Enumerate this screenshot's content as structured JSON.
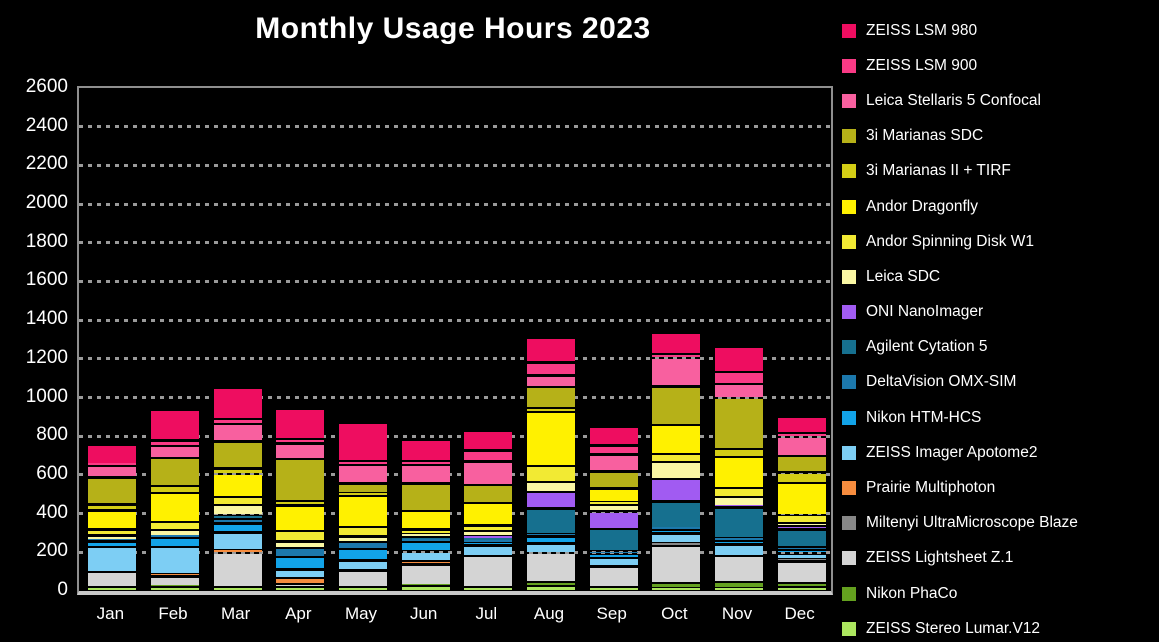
{
  "title": "Monthly Usage Hours 2023",
  "colors": {
    "background": "#000000",
    "text": "#FFFFFF",
    "gridline": "#9A9A9A",
    "plot_border": "#8F8F8F",
    "axis_line": "#C9C9C9"
  },
  "chart_data": {
    "type": "bar",
    "stacked": true,
    "title": "Monthly Usage Hours 2023",
    "xlabel": "",
    "ylabel": "",
    "ylim": [
      0,
      2600
    ],
    "ytick_step": 200,
    "grid": "dotted-horizontal",
    "legend_position": "right",
    "categories": [
      "Jan",
      "Feb",
      "Mar",
      "Apr",
      "May",
      "Jun",
      "Jul",
      "Aug",
      "Sep",
      "Oct",
      "Nov",
      "Dec"
    ],
    "series": [
      {
        "name": "ZEISS LSM 980",
        "color": "#EE0D60",
        "values": [
          100,
          160,
          160,
          155,
          200,
          115,
          100,
          130,
          95,
          110,
          132,
          85
        ]
      },
      {
        "name": "ZEISS LSM 900",
        "color": "#F93A85",
        "values": [
          8,
          28,
          25,
          22,
          20,
          18,
          58,
          68,
          48,
          20,
          63,
          20
        ]
      },
      {
        "name": "Leica Stellaris 5 Confocal",
        "color": "#F8609F",
        "values": [
          60,
          63,
          90,
          82,
          95,
          95,
          120,
          58,
          88,
          145,
          70,
          100
        ]
      },
      {
        "name": "3i Marianas SDC",
        "color": "#B6B118",
        "values": [
          140,
          145,
          140,
          215,
          48,
          142,
          95,
          110,
          88,
          200,
          265,
          85
        ]
      },
      {
        "name": "3i Marianas II + TIRF",
        "color": "#D3CD15",
        "values": [
          30,
          36,
          28,
          25,
          15,
          0,
          0,
          20,
          0,
          0,
          42,
          55
        ]
      },
      {
        "name": "Andor Dragonfly",
        "color": "#FFF100",
        "values": [
          100,
          150,
          120,
          130,
          160,
          95,
          115,
          280,
          70,
          150,
          160,
          165
        ]
      },
      {
        "name": "Andor Spinning Disk W1",
        "color": "#F2EA33",
        "values": [
          30,
          40,
          40,
          55,
          50,
          25,
          30,
          80,
          15,
          40,
          45,
          40
        ]
      },
      {
        "name": "Leica SDC",
        "color": "#FAF7A3",
        "values": [
          22,
          32,
          52,
          35,
          30,
          15,
          28,
          54,
          32,
          90,
          48,
          18
        ]
      },
      {
        "name": "ONI NanoImager",
        "color": "#A15BF2",
        "values": [
          0,
          0,
          0,
          0,
          0,
          0,
          12,
          85,
          90,
          115,
          8,
          15
        ]
      },
      {
        "name": "Agilent Cytation 5",
        "color": "#16708F",
        "values": [
          0,
          0,
          20,
          0,
          0,
          18,
          10,
          132,
          118,
          140,
          158,
          95
        ]
      },
      {
        "name": "DeltaVision OMX-SIM",
        "color": "#1C78AC",
        "values": [
          8,
          10,
          25,
          45,
          35,
          8,
          12,
          12,
          15,
          8,
          15,
          15
        ]
      },
      {
        "name": "Nikon HTM-HCS",
        "color": "#12A3E8",
        "values": [
          30,
          45,
          45,
          65,
          60,
          48,
          12,
          36,
          18,
          18,
          18,
          15
        ]
      },
      {
        "name": "ZEISS Imager Apotome2",
        "color": "#7DCEF4",
        "values": [
          130,
          140,
          90,
          45,
          50,
          52,
          55,
          48,
          45,
          48,
          58,
          30
        ]
      },
      {
        "name": "Prairie Multiphoton",
        "color": "#F68C3E",
        "values": [
          0,
          14,
          15,
          30,
          0,
          15,
          0,
          0,
          0,
          0,
          0,
          0
        ]
      },
      {
        "name": "Miltenyi UltraMicroscope Blaze",
        "color": "#878787",
        "values": [
          0,
          0,
          0,
          0,
          0,
          0,
          0,
          0,
          0,
          15,
          0,
          12
        ]
      },
      {
        "name": "ZEISS Lightsheet Z.1",
        "color": "#D4D4D4",
        "values": [
          75,
          48,
          180,
          18,
          85,
          108,
          160,
          155,
          108,
          192,
          135,
          112
        ]
      },
      {
        "name": "Nikon PhaCo",
        "color": "#64A01F",
        "values": [
          0,
          5,
          0,
          0,
          0,
          5,
          0,
          18,
          0,
          30,
          30,
          22
        ]
      },
      {
        "name": "ZEISS Stereo Lumar.V12",
        "color": "#ACE65F",
        "values": [
          22,
          22,
          18,
          18,
          22,
          25,
          20,
          25,
          18,
          12,
          17,
          18
        ]
      }
    ]
  }
}
